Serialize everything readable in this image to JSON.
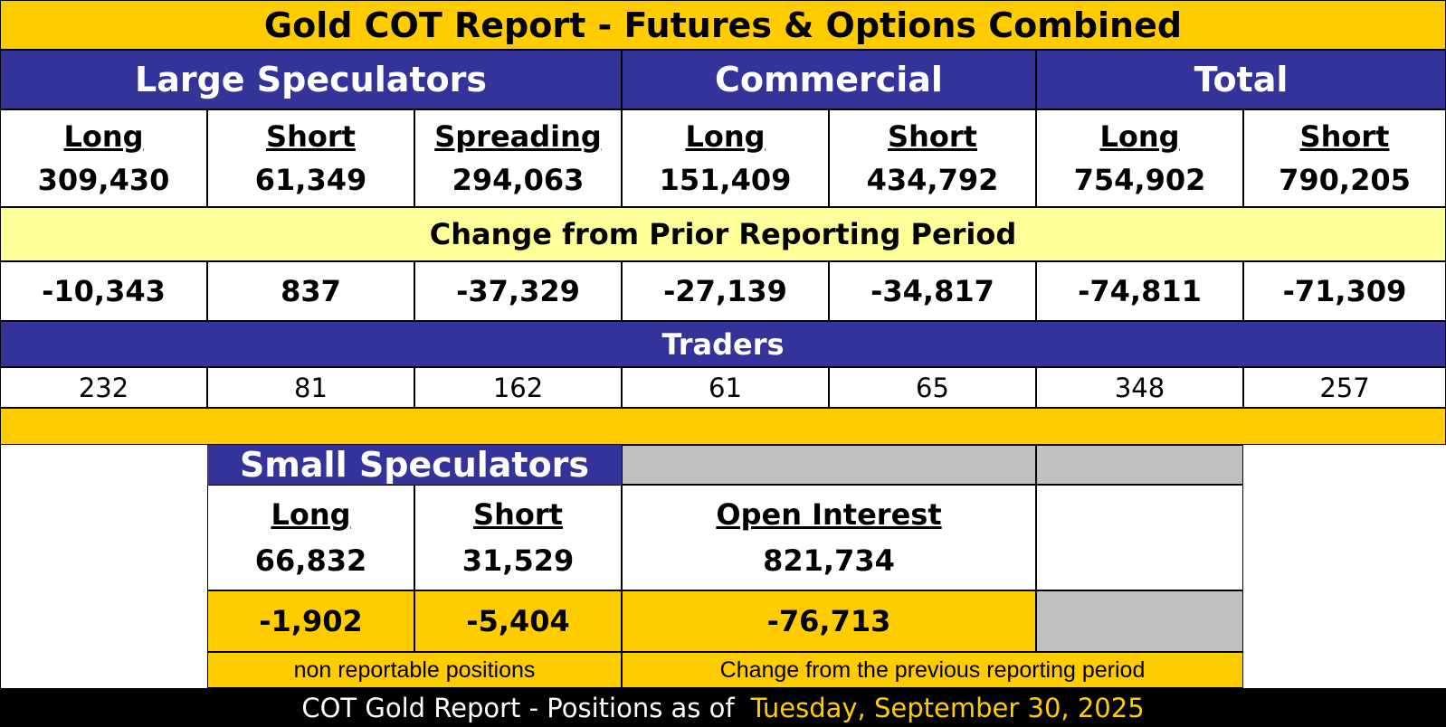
{
  "title": "Gold COT Report - Futures & Options Combined",
  "groups": {
    "large_speculators": "Large Speculators",
    "commercial": "Commercial",
    "total": "Total"
  },
  "columns": [
    {
      "header": "Long",
      "value": "309,430",
      "change": "-10,343",
      "traders": "232"
    },
    {
      "header": "Short",
      "value": "61,349",
      "change": "837",
      "traders": "81"
    },
    {
      "header": "Spreading",
      "value": "294,063",
      "change": "-37,329",
      "traders": "162"
    },
    {
      "header": "Long",
      "value": "151,409",
      "change": "-27,139",
      "traders": "61"
    },
    {
      "header": "Short",
      "value": "434,792",
      "change": "-34,817",
      "traders": "65"
    },
    {
      "header": "Long",
      "value": "754,902",
      "change": "-74,811",
      "traders": "348"
    },
    {
      "header": "Short",
      "value": "790,205",
      "change": "-71,309",
      "traders": "257"
    }
  ],
  "change_label": "Change from Prior Reporting Period",
  "traders_label": "Traders",
  "small_speculators": {
    "title": "Small Speculators",
    "long_header": "Long",
    "long_value": "66,832",
    "long_change": "-1,902",
    "short_header": "Short",
    "short_value": "31,529",
    "short_change": "-5,404",
    "note": "non reportable positions"
  },
  "open_interest": {
    "header": "Open Interest",
    "value": "821,734",
    "change": "-76,713",
    "note": "Change from the previous reporting period"
  },
  "footer": {
    "text": "COT Gold Report - Positions as of",
    "date": "Tuesday, September 30, 2025"
  },
  "colors": {
    "gold": "#ffcc00",
    "navy": "#333399",
    "light_yellow": "#ffff99",
    "gray": "#c0c0c0"
  }
}
